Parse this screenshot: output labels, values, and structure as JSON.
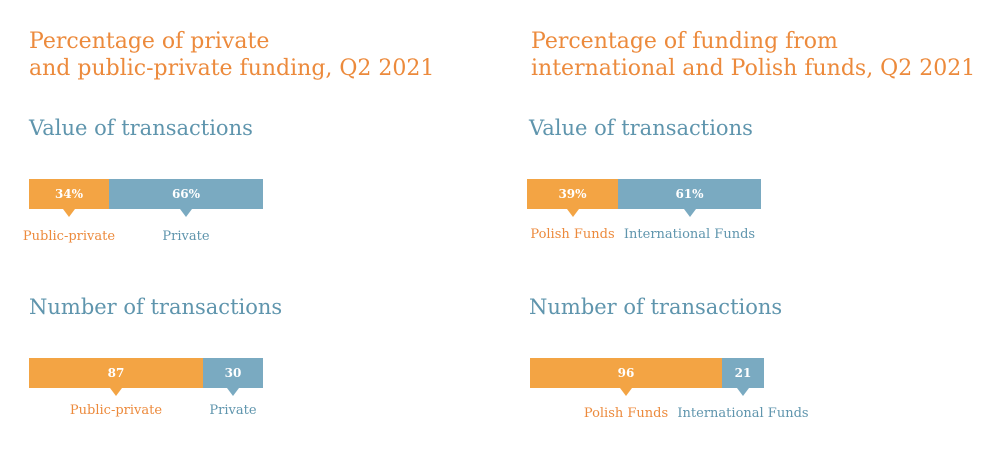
{
  "chart_data": [
    {
      "title_lines": [
        "Percentage of private",
        "and public-private funding, Q2 2021"
      ],
      "charts": [
        {
          "type": "bar",
          "subtitle": "Value of transactions",
          "series": [
            {
              "name": "Public-private",
              "value": 34,
              "display": "34%"
            },
            {
              "name": "Private",
              "value": 66,
              "display": "66%"
            }
          ]
        },
        {
          "type": "bar",
          "subtitle": "Number of transactions",
          "series": [
            {
              "name": "Public-private",
              "value": 87,
              "display": "87"
            },
            {
              "name": "Private",
              "value": 30,
              "display": "30"
            }
          ]
        }
      ]
    },
    {
      "title_lines": [
        "Percentage of funding from",
        "international and Polish funds, Q2 2021"
      ],
      "charts": [
        {
          "type": "bar",
          "subtitle": "Value of transactions",
          "series": [
            {
              "name": "Polish Funds",
              "value": 39,
              "display": "39%"
            },
            {
              "name": "International Funds",
              "value": 61,
              "display": "61%"
            }
          ]
        },
        {
          "type": "bar",
          "subtitle": "Number of transactions",
          "series": [
            {
              "name": "Polish Funds",
              "value": 96,
              "display": "96"
            },
            {
              "name": "International Funds",
              "value": 21,
              "display": "21"
            }
          ]
        }
      ]
    }
  ],
  "colors": {
    "first": "#f3a444",
    "second": "#7aaac1",
    "title": "#ec8a3c",
    "heading": "#5f95ad"
  }
}
